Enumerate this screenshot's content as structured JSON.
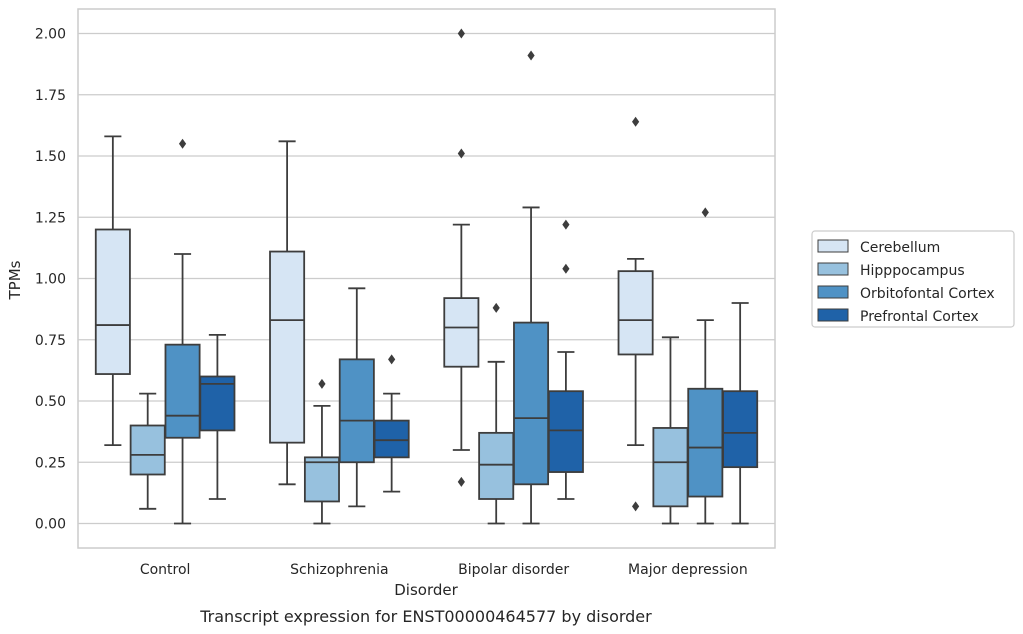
{
  "caption": "Transcript expression for ENST00000464577 by disorder",
  "chart_data": {
    "type": "box",
    "title": "",
    "xlabel": "Disorder",
    "ylabel": "TPMs",
    "categories": [
      "Control",
      "Schizophrenia",
      "Bipolar disorder",
      "Major depression"
    ],
    "ylim": [
      -0.1,
      2.1
    ],
    "yticks": [
      0.0,
      0.25,
      0.5,
      0.75,
      1.0,
      1.25,
      1.5,
      1.75,
      2.0
    ],
    "ytick_labels": [
      "0.00",
      "0.25",
      "0.50",
      "0.75",
      "1.00",
      "1.25",
      "1.50",
      "1.75",
      "2.00"
    ],
    "grid": "horizontal",
    "legend_position": "right",
    "series": [
      {
        "name": "Cerebellum",
        "color": "#d6e5f4",
        "boxes": [
          {
            "whisker_low": 0.32,
            "q1": 0.61,
            "median": 0.81,
            "q3": 1.2,
            "whisker_high": 1.58,
            "outliers": []
          },
          {
            "whisker_low": 0.16,
            "q1": 0.33,
            "median": 0.83,
            "q3": 1.11,
            "whisker_high": 1.56,
            "outliers": []
          },
          {
            "whisker_low": 0.3,
            "q1": 0.64,
            "median": 0.8,
            "q3": 0.92,
            "whisker_high": 1.22,
            "outliers": [
              0.17,
              1.51,
              2.0
            ]
          },
          {
            "whisker_low": 0.32,
            "q1": 0.69,
            "median": 0.83,
            "q3": 1.03,
            "whisker_high": 1.08,
            "outliers": [
              0.07,
              1.64
            ]
          }
        ]
      },
      {
        "name": "Hipppocampus",
        "color": "#97c1de",
        "boxes": [
          {
            "whisker_low": 0.06,
            "q1": 0.2,
            "median": 0.28,
            "q3": 0.4,
            "whisker_high": 0.53,
            "outliers": []
          },
          {
            "whisker_low": 0.0,
            "q1": 0.09,
            "median": 0.25,
            "q3": 0.27,
            "whisker_high": 0.48,
            "outliers": [
              0.57
            ]
          },
          {
            "whisker_low": 0.0,
            "q1": 0.1,
            "median": 0.24,
            "q3": 0.37,
            "whisker_high": 0.66,
            "outliers": [
              0.88
            ]
          },
          {
            "whisker_low": 0.0,
            "q1": 0.07,
            "median": 0.25,
            "q3": 0.39,
            "whisker_high": 0.76,
            "outliers": []
          }
        ]
      },
      {
        "name": "Orbitofontal Cortex",
        "color": "#4f92c5",
        "boxes": [
          {
            "whisker_low": 0.0,
            "q1": 0.35,
            "median": 0.44,
            "q3": 0.73,
            "whisker_high": 1.1,
            "outliers": [
              1.55
            ]
          },
          {
            "whisker_low": 0.07,
            "q1": 0.25,
            "median": 0.42,
            "q3": 0.67,
            "whisker_high": 0.96,
            "outliers": []
          },
          {
            "whisker_low": 0.0,
            "q1": 0.16,
            "median": 0.43,
            "q3": 0.82,
            "whisker_high": 1.29,
            "outliers": [
              1.91
            ]
          },
          {
            "whisker_low": 0.0,
            "q1": 0.11,
            "median": 0.31,
            "q3": 0.55,
            "whisker_high": 0.83,
            "outliers": [
              1.27
            ]
          }
        ]
      },
      {
        "name": "Prefrontal Cortex",
        "color": "#1f62a8",
        "boxes": [
          {
            "whisker_low": 0.1,
            "q1": 0.38,
            "median": 0.57,
            "q3": 0.6,
            "whisker_high": 0.77,
            "outliers": []
          },
          {
            "whisker_low": 0.13,
            "q1": 0.27,
            "median": 0.34,
            "q3": 0.42,
            "whisker_high": 0.53,
            "outliers": [
              0.67
            ]
          },
          {
            "whisker_low": 0.1,
            "q1": 0.21,
            "median": 0.38,
            "q3": 0.54,
            "whisker_high": 0.7,
            "outliers": [
              1.04,
              1.22
            ]
          },
          {
            "whisker_low": 0.0,
            "q1": 0.23,
            "median": 0.37,
            "q3": 0.54,
            "whisker_high": 0.9,
            "outliers": []
          }
        ]
      }
    ]
  }
}
